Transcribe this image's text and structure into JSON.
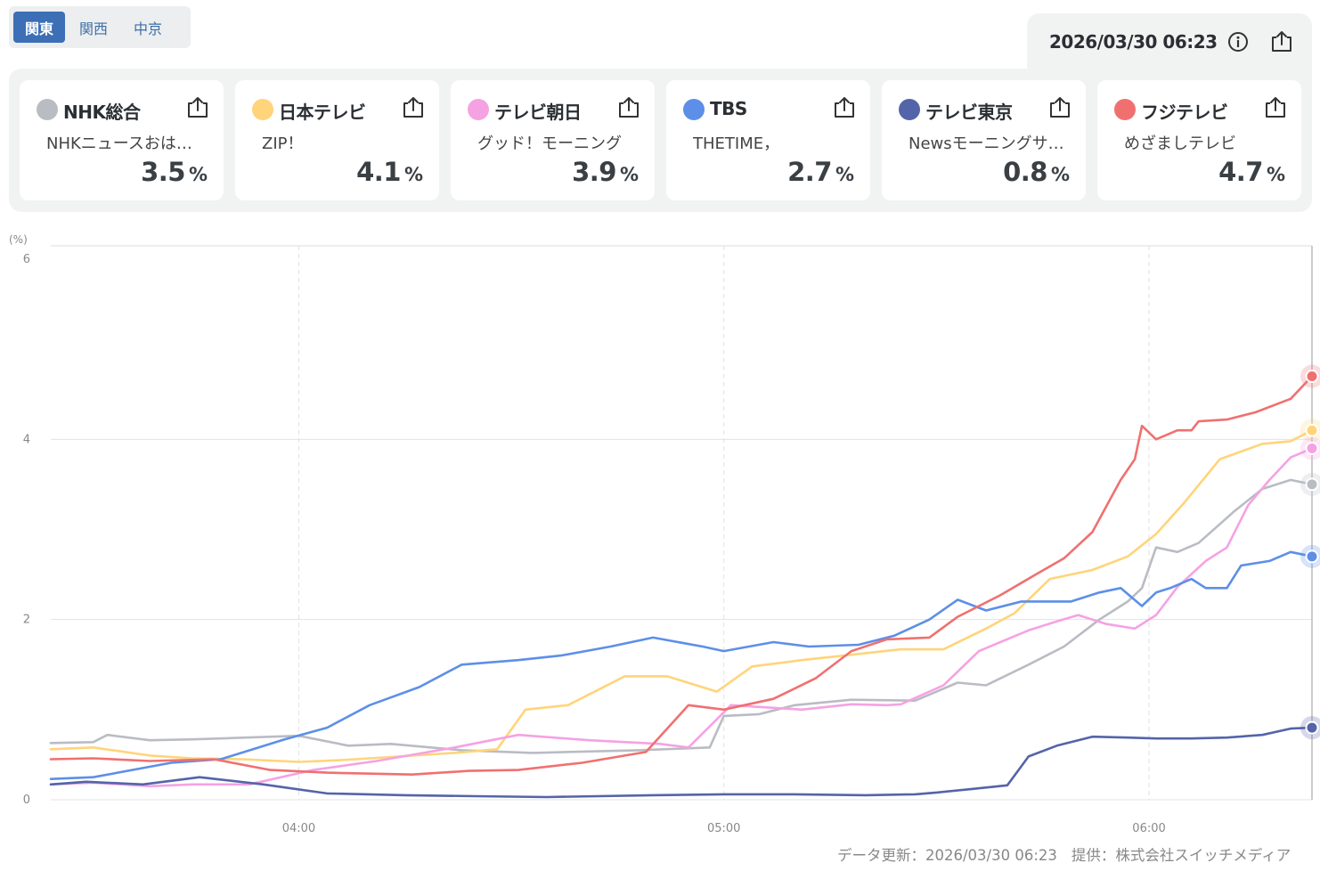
{
  "region_tabs": [
    {
      "label": "関東",
      "active": true
    },
    {
      "label": "関西",
      "active": false
    },
    {
      "label": "中京",
      "active": false
    }
  ],
  "timestamp": "2026/03/30 06:23",
  "icons": {
    "info": "info-icon",
    "share": "share-icon"
  },
  "stations": [
    {
      "name": "NHK総合",
      "color": "#b9bcc3",
      "program": "NHKニュースおはよう日本",
      "value": "3.5",
      "unit": "%"
    },
    {
      "name": "日本テレビ",
      "color": "#ffd47a",
      "program": "ZIP！",
      "value": "4.1",
      "unit": "%"
    },
    {
      "name": "テレビ朝日",
      "color": "#f5a2e3",
      "program": "グッド！モーニング",
      "value": "3.9",
      "unit": "%"
    },
    {
      "name": "TBS",
      "color": "#5d8fe8",
      "program": "THETIME，",
      "value": "2.7",
      "unit": "%"
    },
    {
      "name": "テレビ東京",
      "color": "#5464a9",
      "program": "Newsモーニングサテライト",
      "value": "0.8",
      "unit": "%"
    },
    {
      "name": "フジテレビ",
      "color": "#f07070",
      "program": "めざましテレビ",
      "value": "4.7",
      "unit": "%"
    }
  ],
  "footer": {
    "updated": "データ更新：2026/03/30 06:23",
    "provider": "提供：株式会社スイッチメディア"
  },
  "chart_data": {
    "type": "line",
    "ylabel": "(%)",
    "ylim": [
      0,
      6
    ],
    "yticks": [
      0,
      2,
      4,
      6
    ],
    "xlim": [
      205,
      383
    ],
    "xticks": [
      {
        "t": 240,
        "label": "04:00"
      },
      {
        "t": 300,
        "label": "05:00"
      },
      {
        "t": 360,
        "label": "06:00"
      }
    ],
    "grid": true,
    "series": [
      {
        "name": "NHK総合",
        "color": "#b9bcc3",
        "points": [
          [
            205,
            0.63
          ],
          [
            211,
            0.64
          ],
          [
            213,
            0.72
          ],
          [
            219,
            0.66
          ],
          [
            225,
            0.67
          ],
          [
            240,
            0.71
          ],
          [
            247,
            0.6
          ],
          [
            253,
            0.62
          ],
          [
            263,
            0.55
          ],
          [
            273,
            0.52
          ],
          [
            288,
            0.55
          ],
          [
            298,
            0.58
          ],
          [
            300,
            0.93
          ],
          [
            305,
            0.95
          ],
          [
            310,
            1.05
          ],
          [
            318,
            1.11
          ],
          [
            327,
            1.1
          ],
          [
            333,
            1.3
          ],
          [
            337,
            1.27
          ],
          [
            343,
            1.5
          ],
          [
            348,
            1.7
          ],
          [
            353,
            2.0
          ],
          [
            357,
            2.2
          ],
          [
            359,
            2.35
          ],
          [
            361,
            2.8
          ],
          [
            364,
            2.75
          ],
          [
            367,
            2.85
          ],
          [
            372,
            3.2
          ],
          [
            376,
            3.45
          ],
          [
            380,
            3.55
          ],
          [
            383,
            3.5
          ]
        ]
      },
      {
        "name": "日本テレビ",
        "color": "#ffd47a",
        "points": [
          [
            205,
            0.56
          ],
          [
            211,
            0.58
          ],
          [
            219,
            0.49
          ],
          [
            225,
            0.46
          ],
          [
            232,
            0.45
          ],
          [
            240,
            0.42
          ],
          [
            246,
            0.44
          ],
          [
            252,
            0.47
          ],
          [
            262,
            0.52
          ],
          [
            268,
            0.56
          ],
          [
            272,
            1.0
          ],
          [
            278,
            1.05
          ],
          [
            286,
            1.37
          ],
          [
            292,
            1.37
          ],
          [
            299,
            1.2
          ],
          [
            304,
            1.48
          ],
          [
            311,
            1.55
          ],
          [
            317,
            1.6
          ],
          [
            325,
            1.67
          ],
          [
            331,
            1.67
          ],
          [
            337,
            1.9
          ],
          [
            341,
            2.07
          ],
          [
            346,
            2.45
          ],
          [
            352,
            2.55
          ],
          [
            357,
            2.7
          ],
          [
            361,
            2.95
          ],
          [
            365,
            3.3
          ],
          [
            370,
            3.78
          ],
          [
            376,
            3.95
          ],
          [
            380,
            3.98
          ],
          [
            383,
            4.1
          ]
        ]
      },
      {
        "name": "テレビ朝日",
        "color": "#f5a2e3",
        "points": [
          [
            205,
            0.17
          ],
          [
            211,
            0.19
          ],
          [
            219,
            0.15
          ],
          [
            225,
            0.17
          ],
          [
            233,
            0.17
          ],
          [
            242,
            0.33
          ],
          [
            251,
            0.43
          ],
          [
            262,
            0.58
          ],
          [
            271,
            0.72
          ],
          [
            281,
            0.66
          ],
          [
            291,
            0.62
          ],
          [
            295,
            0.58
          ],
          [
            301,
            1.05
          ],
          [
            311,
            1.0
          ],
          [
            318,
            1.06
          ],
          [
            323,
            1.05
          ],
          [
            325,
            1.06
          ],
          [
            331,
            1.27
          ],
          [
            336,
            1.65
          ],
          [
            343,
            1.88
          ],
          [
            347,
            1.98
          ],
          [
            350,
            2.05
          ],
          [
            354,
            1.95
          ],
          [
            358,
            1.9
          ],
          [
            361,
            2.05
          ],
          [
            364,
            2.36
          ],
          [
            368,
            2.65
          ],
          [
            371,
            2.8
          ],
          [
            374,
            3.27
          ],
          [
            377,
            3.55
          ],
          [
            380,
            3.8
          ],
          [
            383,
            3.9
          ]
        ]
      },
      {
        "name": "TBS",
        "color": "#5d8fe8",
        "points": [
          [
            205,
            0.23
          ],
          [
            211,
            0.25
          ],
          [
            222,
            0.41
          ],
          [
            229,
            0.45
          ],
          [
            238,
            0.67
          ],
          [
            244,
            0.8
          ],
          [
            250,
            1.05
          ],
          [
            257,
            1.25
          ],
          [
            263,
            1.5
          ],
          [
            271,
            1.55
          ],
          [
            277,
            1.6
          ],
          [
            284,
            1.7
          ],
          [
            290,
            1.8
          ],
          [
            297,
            1.7
          ],
          [
            300,
            1.65
          ],
          [
            307,
            1.75
          ],
          [
            312,
            1.7
          ],
          [
            319,
            1.72
          ],
          [
            324,
            1.82
          ],
          [
            329,
            2.0
          ],
          [
            333,
            2.22
          ],
          [
            337,
            2.1
          ],
          [
            342,
            2.2
          ],
          [
            349,
            2.2
          ],
          [
            353,
            2.3
          ],
          [
            356,
            2.35
          ],
          [
            359,
            2.15
          ],
          [
            361,
            2.3
          ],
          [
            363,
            2.35
          ],
          [
            366,
            2.45
          ],
          [
            368,
            2.35
          ],
          [
            371,
            2.35
          ],
          [
            373,
            2.6
          ],
          [
            377,
            2.65
          ],
          [
            380,
            2.75
          ],
          [
            383,
            2.7
          ]
        ]
      },
      {
        "name": "テレビ東京",
        "color": "#5464a9",
        "points": [
          [
            205,
            0.17
          ],
          [
            210,
            0.2
          ],
          [
            218,
            0.17
          ],
          [
            226,
            0.25
          ],
          [
            235,
            0.17
          ],
          [
            244,
            0.07
          ],
          [
            255,
            0.05
          ],
          [
            265,
            0.04
          ],
          [
            275,
            0.03
          ],
          [
            290,
            0.05
          ],
          [
            300,
            0.06
          ],
          [
            310,
            0.06
          ],
          [
            320,
            0.05
          ],
          [
            327,
            0.06
          ],
          [
            330,
            0.08
          ],
          [
            335,
            0.12
          ],
          [
            340,
            0.16
          ],
          [
            343,
            0.48
          ],
          [
            347,
            0.6
          ],
          [
            352,
            0.7
          ],
          [
            357,
            0.69
          ],
          [
            361,
            0.68
          ],
          [
            366,
            0.68
          ],
          [
            371,
            0.69
          ],
          [
            376,
            0.72
          ],
          [
            380,
            0.79
          ],
          [
            383,
            0.8
          ]
        ]
      },
      {
        "name": "フジテレビ",
        "color": "#f07070",
        "points": [
          [
            205,
            0.45
          ],
          [
            211,
            0.46
          ],
          [
            219,
            0.43
          ],
          [
            228,
            0.45
          ],
          [
            236,
            0.33
          ],
          [
            244,
            0.3
          ],
          [
            256,
            0.28
          ],
          [
            264,
            0.32
          ],
          [
            271,
            0.33
          ],
          [
            280,
            0.41
          ],
          [
            289,
            0.53
          ],
          [
            295,
            1.05
          ],
          [
            300,
            1.0
          ],
          [
            307,
            1.12
          ],
          [
            313,
            1.35
          ],
          [
            318,
            1.65
          ],
          [
            323,
            1.78
          ],
          [
            329,
            1.8
          ],
          [
            333,
            2.03
          ],
          [
            339,
            2.27
          ],
          [
            344,
            2.5
          ],
          [
            348,
            2.68
          ],
          [
            352,
            2.97
          ],
          [
            356,
            3.55
          ],
          [
            358,
            3.78
          ],
          [
            359,
            4.15
          ],
          [
            361,
            4.0
          ],
          [
            364,
            4.1
          ],
          [
            366,
            4.1
          ],
          [
            367,
            4.2
          ],
          [
            371,
            4.22
          ],
          [
            375,
            4.3
          ],
          [
            380,
            4.45
          ],
          [
            383,
            4.7
          ]
        ]
      }
    ]
  }
}
